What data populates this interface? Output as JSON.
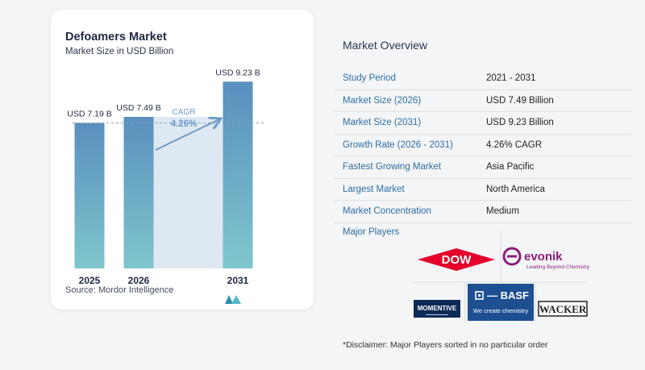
{
  "chart_data": {
    "type": "bar",
    "title": "Defoamers Market",
    "subtitle": "Market Size in USD Billion",
    "categories": [
      "2025",
      "2026",
      "2031"
    ],
    "values": [
      7.19,
      7.49,
      9.23
    ],
    "value_labels": [
      "USD 7.19 B",
      "USD 7.49 B",
      "USD 9.23 B"
    ],
    "cagr_label": "CAGR",
    "cagr_value": "4.26%",
    "colors": {
      "bar_top": "#5a8fbf",
      "bar_bottom": "#7fc6cc",
      "band": "#dde8f2",
      "arrow": "#6f9cc6"
    }
  },
  "source": "Source:  Mordor Intelligence",
  "overview": {
    "title": "Market Overview",
    "rows": [
      {
        "key": "Study Period",
        "value": "2021 - 2031"
      },
      {
        "key": "Market Size (2026)",
        "value": "USD 7.49 Billion"
      },
      {
        "key": "Market Size (2031)",
        "value": "USD 9.23 Billion"
      },
      {
        "key": "Growth Rate (2026 - 2031)",
        "value": "4.26% CAGR"
      },
      {
        "key": "Fastest Growing Market",
        "value": "Asia Pacific"
      },
      {
        "key": "Largest Market",
        "value": "North America"
      },
      {
        "key": "Market Concentration",
        "value": "Medium"
      }
    ]
  },
  "players": {
    "title": "Major Players",
    "logos": [
      {
        "name": "DOW",
        "icon": "dow-logo",
        "color": "#e4002b"
      },
      {
        "name": "EVONIK",
        "tagline": "Leading Beyond Chemistry",
        "icon": "evonik-logo",
        "color": "#8c1d7b"
      },
      {
        "name": "MOMENTIVE",
        "icon": "momentive-logo",
        "color": "#0b2a55"
      },
      {
        "name": "BASF",
        "tagline": "We create chemistry",
        "icon": "basf-logo",
        "color": "#1d4f91"
      },
      {
        "name": "WACKER",
        "icon": "wacker-logo",
        "color": "#222222"
      }
    ]
  },
  "disclaimer": "*Disclaimer: Major Players sorted in no particular order"
}
